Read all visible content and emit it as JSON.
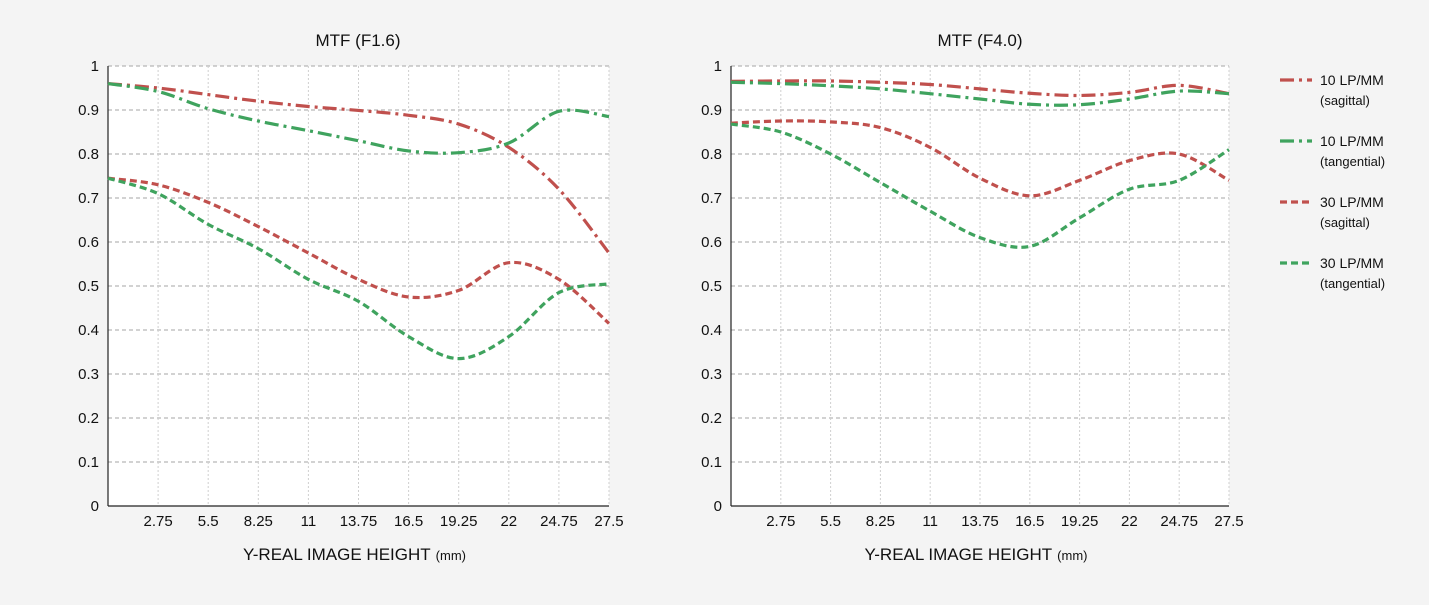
{
  "chart_data": [
    {
      "type": "line",
      "title": "MTF (F1.6)",
      "xlabel": "Y-REAL IMAGE HEIGHT",
      "xlabel_unit": "(mm)",
      "ylabel": "",
      "xlim": [
        0,
        27.5
      ],
      "ylim": [
        0,
        1
      ],
      "xticks": [
        "2.75",
        "5.5",
        "8.25",
        "11",
        "13.75",
        "16.5",
        "19.25",
        "22",
        "24.75",
        "27.5"
      ],
      "yticks": [
        "0",
        "0.1",
        "0.2",
        "0.3",
        "0.4",
        "0.5",
        "0.6",
        "0.7",
        "0.8",
        "0.9",
        "1"
      ],
      "grid": true,
      "series": [
        {
          "name": "10 LP/MM",
          "sub": "(sagittal)",
          "color": "#c0504d",
          "dash": "dashdot",
          "x": [
            0,
            2.75,
            5.5,
            8.25,
            11,
            13.75,
            16.5,
            19.25,
            22,
            24.75,
            27.5
          ],
          "y": [
            0.96,
            0.95,
            0.935,
            0.92,
            0.908,
            0.899,
            0.888,
            0.868,
            0.815,
            0.72,
            0.575
          ]
        },
        {
          "name": "10 LP/MM",
          "sub": "(tangential)",
          "color": "#3fa35e",
          "dash": "dashdot",
          "x": [
            0,
            2.75,
            5.5,
            8.25,
            11,
            13.75,
            16.5,
            19.25,
            22,
            24.75,
            27.5
          ],
          "y": [
            0.96,
            0.942,
            0.903,
            0.875,
            0.853,
            0.83,
            0.807,
            0.803,
            0.825,
            0.897,
            0.885
          ]
        },
        {
          "name": "30 LP/MM",
          "sub": "(sagittal)",
          "color": "#c0504d",
          "dash": "dash",
          "x": [
            0,
            2.75,
            5.5,
            8.25,
            11,
            13.75,
            16.5,
            19.25,
            22,
            24.75,
            27.5
          ],
          "y": [
            0.745,
            0.73,
            0.69,
            0.635,
            0.575,
            0.515,
            0.475,
            0.49,
            0.553,
            0.515,
            0.415
          ]
        },
        {
          "name": "30 LP/MM",
          "sub": "(tangential)",
          "color": "#3fa35e",
          "dash": "dash",
          "x": [
            0,
            2.75,
            5.5,
            8.25,
            11,
            13.75,
            16.5,
            19.25,
            22,
            24.75,
            27.5
          ],
          "y": [
            0.745,
            0.71,
            0.64,
            0.585,
            0.515,
            0.465,
            0.385,
            0.335,
            0.385,
            0.485,
            0.505
          ]
        }
      ]
    },
    {
      "type": "line",
      "title": "MTF (F4.0)",
      "xlabel": "Y-REAL IMAGE HEIGHT",
      "xlabel_unit": "(mm)",
      "ylabel": "",
      "xlim": [
        0,
        27.5
      ],
      "ylim": [
        0,
        1
      ],
      "xticks": [
        "2.75",
        "5.5",
        "8.25",
        "11",
        "13.75",
        "16.5",
        "19.25",
        "22",
        "24.75",
        "27.5"
      ],
      "yticks": [
        "0",
        "0.1",
        "0.2",
        "0.3",
        "0.4",
        "0.5",
        "0.6",
        "0.7",
        "0.8",
        "0.9",
        "1"
      ],
      "grid": true,
      "series": [
        {
          "name": "10 LP/MM",
          "sub": "(sagittal)",
          "color": "#c0504d",
          "dash": "dashdot",
          "x": [
            0,
            2.75,
            5.5,
            8.25,
            11,
            13.75,
            16.5,
            19.25,
            22,
            24.75,
            27.5
          ],
          "y": [
            0.965,
            0.966,
            0.966,
            0.963,
            0.958,
            0.948,
            0.938,
            0.933,
            0.94,
            0.956,
            0.937
          ]
        },
        {
          "name": "10 LP/MM",
          "sub": "(tangential)",
          "color": "#3fa35e",
          "dash": "dashdot",
          "x": [
            0,
            2.75,
            5.5,
            8.25,
            11,
            13.75,
            16.5,
            19.25,
            22,
            24.75,
            27.5
          ],
          "y": [
            0.963,
            0.96,
            0.955,
            0.948,
            0.937,
            0.925,
            0.913,
            0.912,
            0.925,
            0.943,
            0.937
          ]
        },
        {
          "name": "30 LP/MM",
          "sub": "(sagittal)",
          "color": "#c0504d",
          "dash": "dash",
          "x": [
            0,
            2.75,
            5.5,
            8.25,
            11,
            13.75,
            16.5,
            19.25,
            22,
            24.75,
            27.5
          ],
          "y": [
            0.87,
            0.875,
            0.873,
            0.86,
            0.815,
            0.745,
            0.705,
            0.74,
            0.785,
            0.8,
            0.74
          ]
        },
        {
          "name": "30 LP/MM",
          "sub": "(tangential)",
          "color": "#3fa35e",
          "dash": "dash",
          "x": [
            0,
            2.75,
            5.5,
            8.25,
            11,
            13.75,
            16.5,
            19.25,
            22,
            24.75,
            27.5
          ],
          "y": [
            0.868,
            0.85,
            0.8,
            0.735,
            0.67,
            0.61,
            0.59,
            0.655,
            0.72,
            0.74,
            0.81
          ]
        }
      ]
    }
  ],
  "legend": {
    "placement": "right",
    "items": [
      {
        "label": "10 LP/MM",
        "sub": "(sagittal)",
        "color": "#c0504d",
        "dash": "dashdot"
      },
      {
        "label": "10 LP/MM",
        "sub": "(tangential)",
        "color": "#3fa35e",
        "dash": "dashdot"
      },
      {
        "label": "30 LP/MM",
        "sub": "(sagittal)",
        "color": "#c0504d",
        "dash": "dash"
      },
      {
        "label": "30 LP/MM",
        "sub": "(tangential)",
        "color": "#3fa35e",
        "dash": "dash"
      }
    ]
  }
}
